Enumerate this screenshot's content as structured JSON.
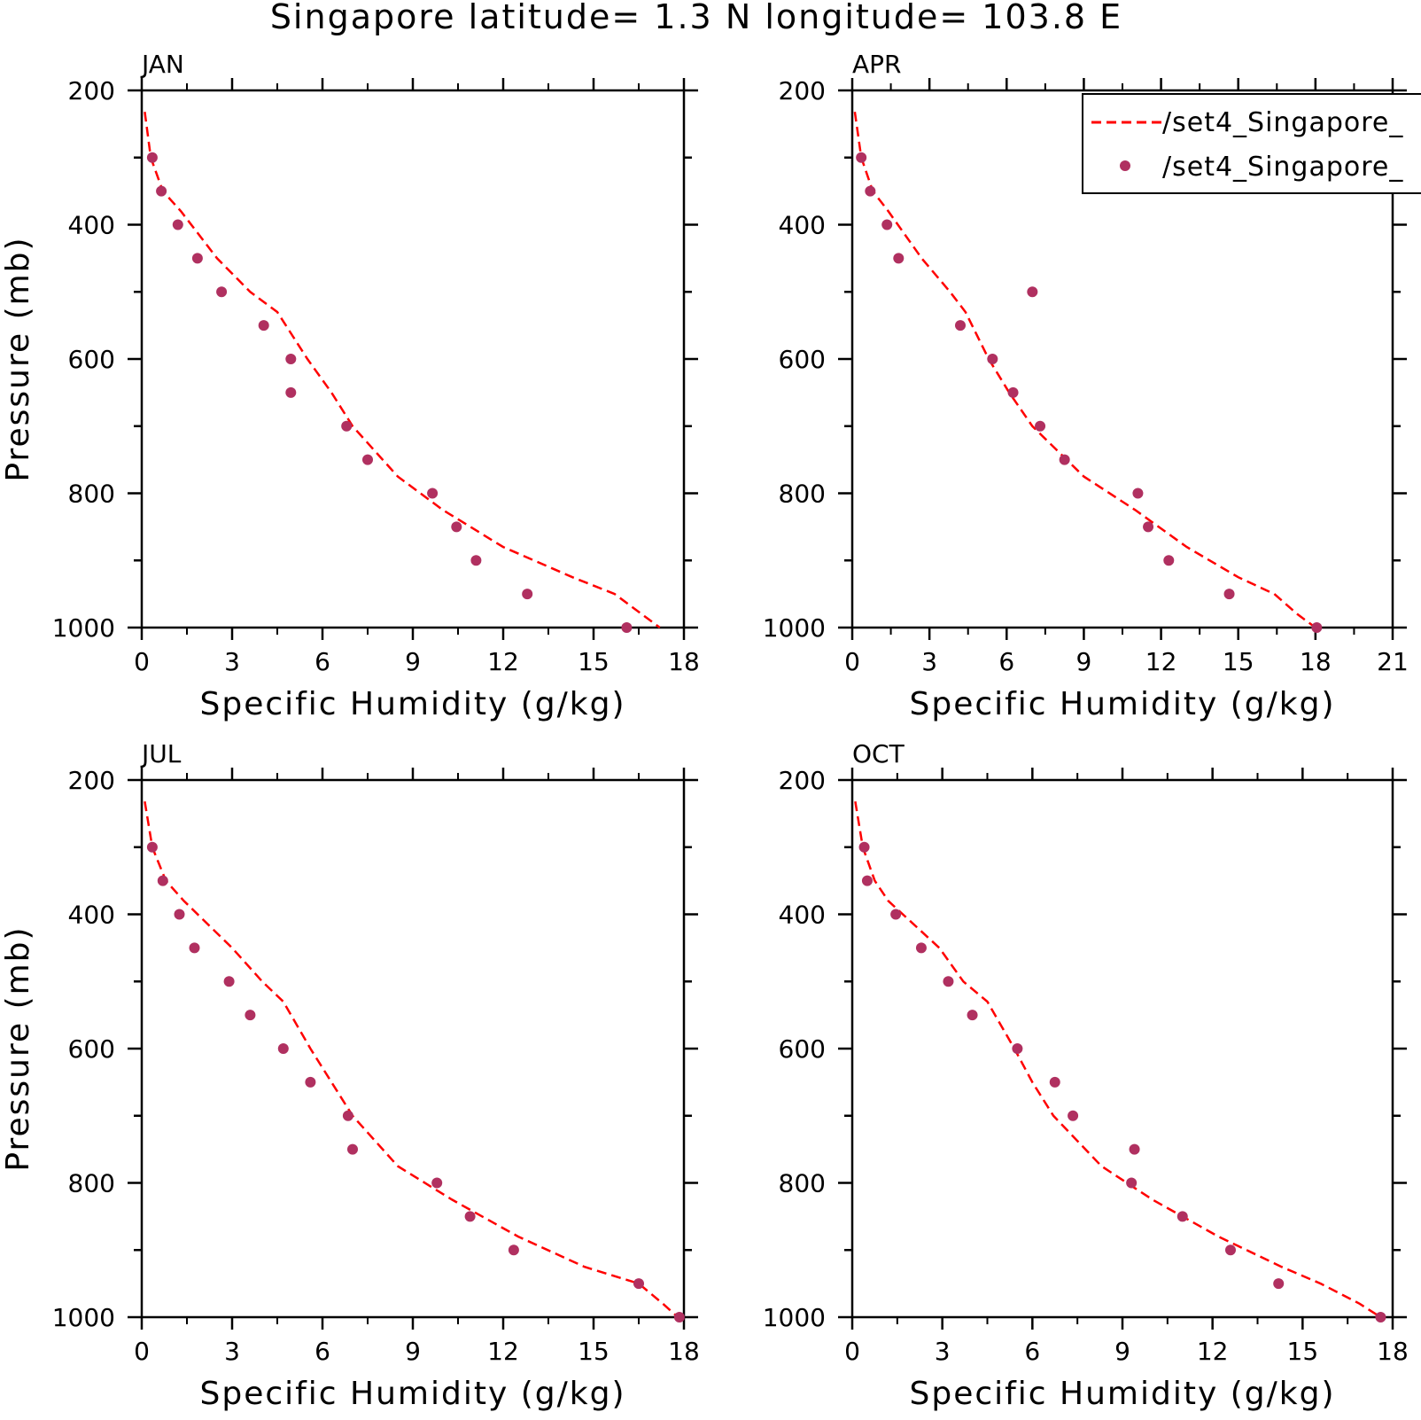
{
  "title": "Singapore  latitude= 1.3 N longitude= 103.8 E",
  "colors": {
    "model_line": "#ff0000",
    "obs_marker": "#b03060"
  },
  "legend": {
    "placement": "top-right of APR panel",
    "entries": [
      "/set4_Singapore_",
      "/set4_Singapore_"
    ]
  },
  "chart_data": [
    {
      "type": "line",
      "title": "JAN",
      "xlabel": "Specific Humidity (g/kg)",
      "ylabel": "Pressure (mb)",
      "xlim": [
        0,
        18
      ],
      "ylim": [
        1000,
        200
      ],
      "xticks": [
        "0",
        "3",
        "6",
        "9",
        "12",
        "15",
        "18"
      ],
      "yticks": [
        "200",
        "400",
        "600",
        "800",
        "1000"
      ],
      "series": [
        {
          "name": "/set4_Singapore_",
          "style": "dashed-line",
          "x": [
            0.1,
            0.3,
            0.7,
            1.3,
            2.5,
            3.6,
            4.5,
            5.5,
            6.3,
            7.0,
            8.5,
            10.0,
            12.0,
            14.3,
            15.7,
            16.6,
            17.2
          ],
          "y": [
            232,
            300,
            350,
            380,
            450,
            500,
            530,
            600,
            650,
            700,
            775,
            825,
            880,
            925,
            950,
            980,
            1000
          ]
        },
        {
          "name": "/set4_Singapore_",
          "style": "markers",
          "x": [
            0.35,
            0.65,
            1.2,
            1.85,
            2.65,
            4.05,
            4.95,
            4.95,
            6.8,
            7.5,
            9.65,
            10.45,
            11.1,
            12.8,
            16.1
          ],
          "y": [
            300,
            350,
            400,
            450,
            500,
            550,
            600,
            650,
            700,
            750,
            800,
            850,
            900,
            950,
            1000
          ]
        }
      ]
    },
    {
      "type": "line",
      "title": "APR",
      "xlabel": "Specific Humidity (g/kg)",
      "ylabel": "",
      "xlim": [
        0,
        21
      ],
      "ylim": [
        1000,
        200
      ],
      "xticks": [
        "0",
        "3",
        "6",
        "9",
        "12",
        "15",
        "18",
        "21"
      ],
      "yticks": [
        "200",
        "400",
        "600",
        "800",
        "1000"
      ],
      "series": [
        {
          "name": "/set4_Singapore_",
          "style": "dashed-line",
          "x": [
            0.1,
            0.35,
            0.8,
            1.4,
            2.7,
            3.8,
            4.4,
            5.3,
            6.1,
            7.0,
            9.0,
            11.0,
            13.0,
            15.0,
            16.4,
            17.3,
            18.0
          ],
          "y": [
            232,
            300,
            350,
            380,
            450,
            500,
            530,
            600,
            650,
            700,
            775,
            825,
            880,
            925,
            950,
            980,
            1000
          ]
        },
        {
          "name": "/set4_Singapore_",
          "style": "markers",
          "x": [
            0.35,
            0.7,
            1.35,
            1.8,
            7.0,
            4.2,
            5.45,
            6.25,
            7.3,
            8.25,
            11.1,
            11.5,
            12.3,
            14.65,
            18.05
          ],
          "y": [
            300,
            350,
            400,
            450,
            500,
            550,
            600,
            650,
            700,
            750,
            800,
            850,
            900,
            950,
            1000
          ]
        }
      ]
    },
    {
      "type": "line",
      "title": "JUL",
      "xlabel": "Specific Humidity (g/kg)",
      "ylabel": "Pressure (mb)",
      "xlim": [
        0,
        18
      ],
      "ylim": [
        1000,
        200
      ],
      "xticks": [
        "0",
        "3",
        "6",
        "9",
        "12",
        "15",
        "18"
      ],
      "yticks": [
        "200",
        "400",
        "600",
        "800",
        "1000"
      ],
      "series": [
        {
          "name": "/set4_Singapore_",
          "style": "dashed-line",
          "x": [
            0.1,
            0.35,
            0.8,
            1.4,
            3.0,
            4.0,
            4.7,
            5.6,
            6.3,
            7.0,
            8.5,
            10.3,
            12.5,
            14.7,
            16.5,
            17.3,
            17.8
          ],
          "y": [
            232,
            300,
            350,
            380,
            450,
            500,
            530,
            600,
            650,
            700,
            775,
            825,
            880,
            925,
            950,
            980,
            1000
          ]
        },
        {
          "name": "/set4_Singapore_",
          "style": "markers",
          "x": [
            0.35,
            0.7,
            1.25,
            1.75,
            2.9,
            3.6,
            4.7,
            5.6,
            6.85,
            7.0,
            9.8,
            10.9,
            12.35,
            16.5,
            17.85
          ],
          "y": [
            300,
            350,
            400,
            450,
            500,
            550,
            600,
            650,
            700,
            750,
            800,
            850,
            900,
            950,
            1000
          ]
        }
      ]
    },
    {
      "type": "line",
      "title": "OCT",
      "xlabel": "Specific Humidity (g/kg)",
      "ylabel": "",
      "xlim": [
        0,
        18
      ],
      "ylim": [
        1000,
        200
      ],
      "xticks": [
        "0",
        "3",
        "6",
        "9",
        "12",
        "15",
        "18"
      ],
      "yticks": [
        "200",
        "400",
        "600",
        "800",
        "1000"
      ],
      "series": [
        {
          "name": "/set4_Singapore_",
          "style": "dashed-line",
          "x": [
            0.1,
            0.35,
            0.75,
            1.2,
            2.9,
            3.7,
            4.5,
            5.4,
            6.0,
            6.7,
            8.3,
            10.0,
            12.2,
            14.3,
            15.6,
            16.9,
            17.6
          ],
          "y": [
            232,
            300,
            350,
            380,
            450,
            500,
            530,
            600,
            650,
            700,
            775,
            825,
            880,
            925,
            950,
            980,
            1000
          ]
        },
        {
          "name": "/set4_Singapore_",
          "style": "markers",
          "x": [
            0.4,
            0.5,
            1.45,
            2.3,
            3.2,
            4.0,
            5.5,
            6.75,
            7.35,
            9.4,
            9.3,
            11.0,
            12.6,
            14.2,
            17.6
          ],
          "y": [
            300,
            350,
            400,
            450,
            500,
            550,
            600,
            650,
            700,
            750,
            800,
            850,
            900,
            950,
            1000
          ]
        }
      ]
    }
  ]
}
